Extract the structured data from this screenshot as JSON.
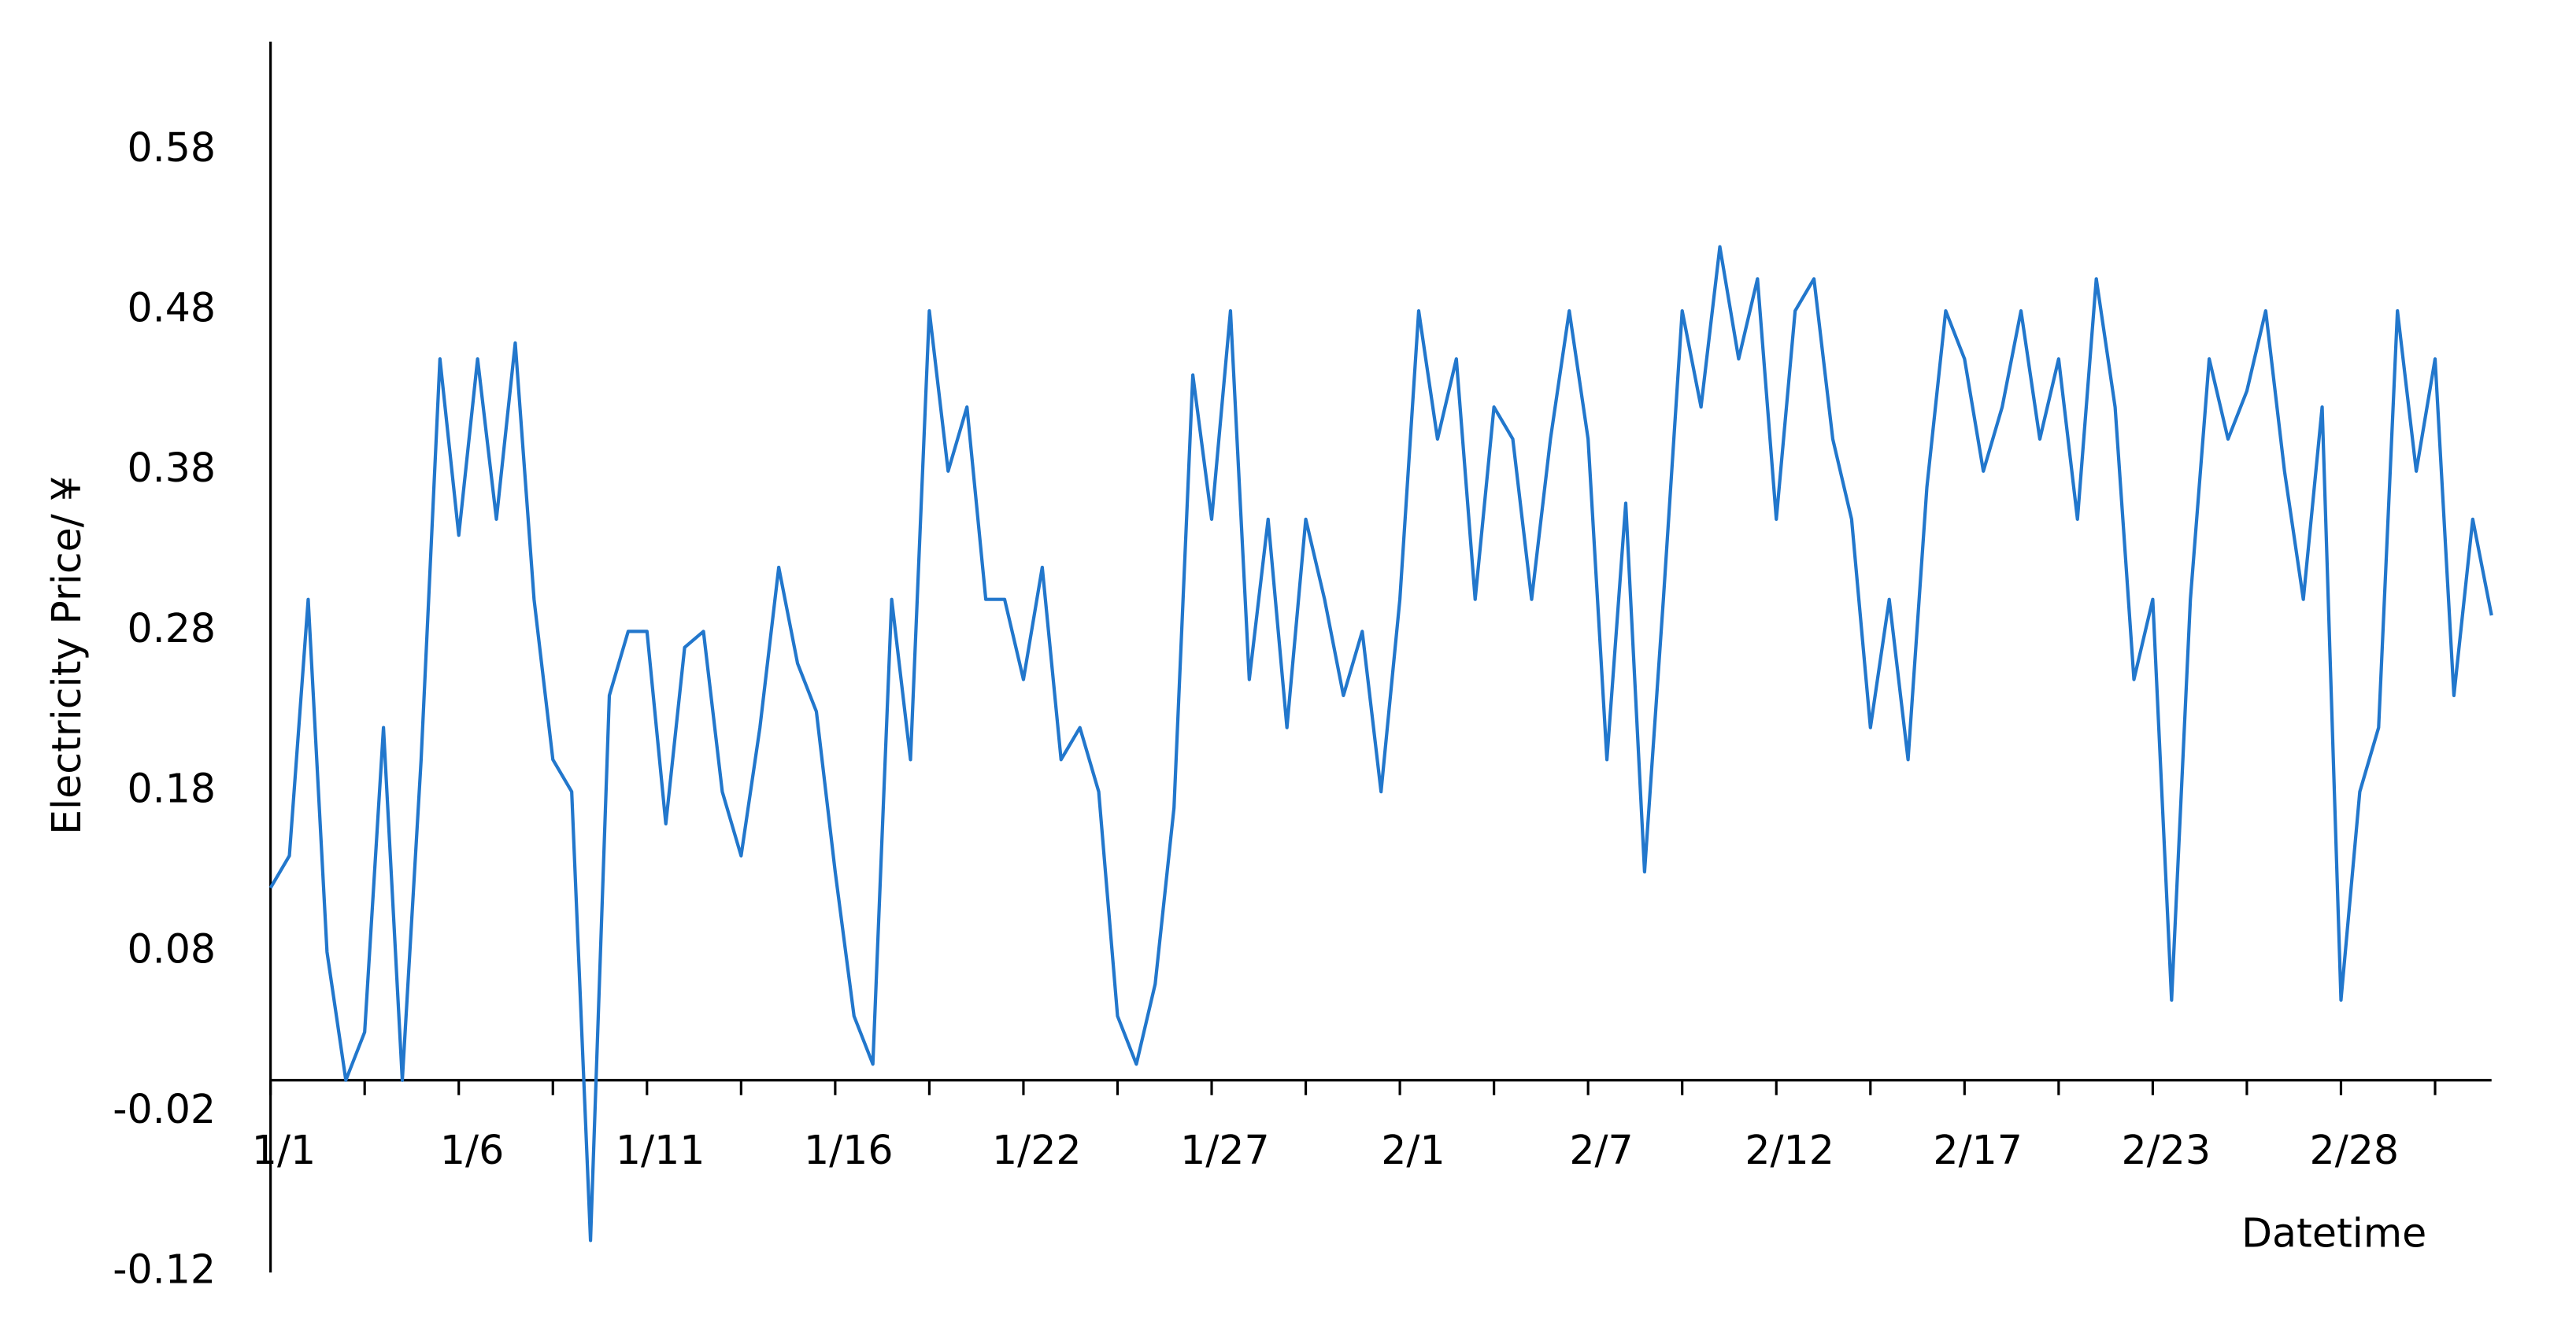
{
  "chart_data": {
    "type": "line",
    "xlabel": "Datetime",
    "ylabel": "Electricity Price/ ¥",
    "color": "#2277cc",
    "categories": [
      "1/1",
      null,
      null,
      null,
      null,
      null,
      null,
      null,
      null,
      null,
      "1/6",
      null,
      null,
      null,
      null,
      null,
      null,
      null,
      null,
      null,
      "1/11",
      null,
      null,
      null,
      null,
      null,
      null,
      null,
      null,
      null,
      "1/16",
      null,
      null,
      null,
      null,
      null,
      null,
      null,
      null,
      null,
      "1/22",
      null,
      null,
      null,
      null,
      null,
      null,
      null,
      null,
      null,
      "1/27",
      null,
      null,
      null,
      null,
      null,
      null,
      null,
      null,
      null,
      "2/1",
      null,
      null,
      null,
      null,
      null,
      null,
      null,
      null,
      null,
      "2/7",
      null,
      null,
      null,
      null,
      null,
      null,
      null,
      null,
      null,
      "2/12",
      null,
      null,
      null,
      null,
      null,
      null,
      null,
      null,
      null,
      "2/17",
      null,
      null,
      null,
      null,
      null,
      null,
      null,
      null,
      null,
      "2/23",
      null,
      null,
      null,
      null,
      null,
      null,
      null,
      null,
      null,
      "2/28",
      null,
      null,
      null,
      null,
      null,
      null,
      null,
      null
    ],
    "values": [
      0.12,
      0.14,
      0.3,
      0.08,
      0.0,
      0.03,
      0.22,
      0.0,
      0.2,
      0.45,
      0.34,
      0.45,
      0.35,
      0.46,
      0.3,
      0.2,
      0.18,
      -0.1,
      0.24,
      0.28,
      0.28,
      0.16,
      0.27,
      0.28,
      0.18,
      0.14,
      0.22,
      0.32,
      0.26,
      0.23,
      0.13,
      0.04,
      0.01,
      0.3,
      0.2,
      0.48,
      0.38,
      0.42,
      0.3,
      0.3,
      0.25,
      0.32,
      0.2,
      0.22,
      0.18,
      0.04,
      0.01,
      0.06,
      0.17,
      0.44,
      0.35,
      0.48,
      0.25,
      0.35,
      0.22,
      0.35,
      0.3,
      0.24,
      0.28,
      0.18,
      0.3,
      0.48,
      0.4,
      0.45,
      0.3,
      0.42,
      0.4,
      0.3,
      0.4,
      0.48,
      0.4,
      0.2,
      0.36,
      0.13,
      0.3,
      0.48,
      0.42,
      0.52,
      0.45,
      0.5,
      0.35,
      0.48,
      0.5,
      0.4,
      0.35,
      0.22,
      0.3,
      0.2,
      0.37,
      0.48,
      0.45,
      0.38,
      0.42,
      0.48,
      0.4,
      0.45,
      0.35,
      0.5,
      0.42,
      0.25,
      0.3,
      0.05,
      0.3,
      0.45,
      0.4,
      0.43,
      0.48,
      0.38,
      0.3,
      0.42,
      0.05,
      0.18,
      0.22,
      0.48,
      0.38,
      0.45,
      0.24,
      0.35,
      0.29
    ],
    "ylim": [
      -0.12,
      0.648
    ],
    "yticks": [
      -0.12,
      -0.02,
      0.08,
      0.18,
      0.28,
      0.38,
      0.48,
      0.58
    ]
  }
}
